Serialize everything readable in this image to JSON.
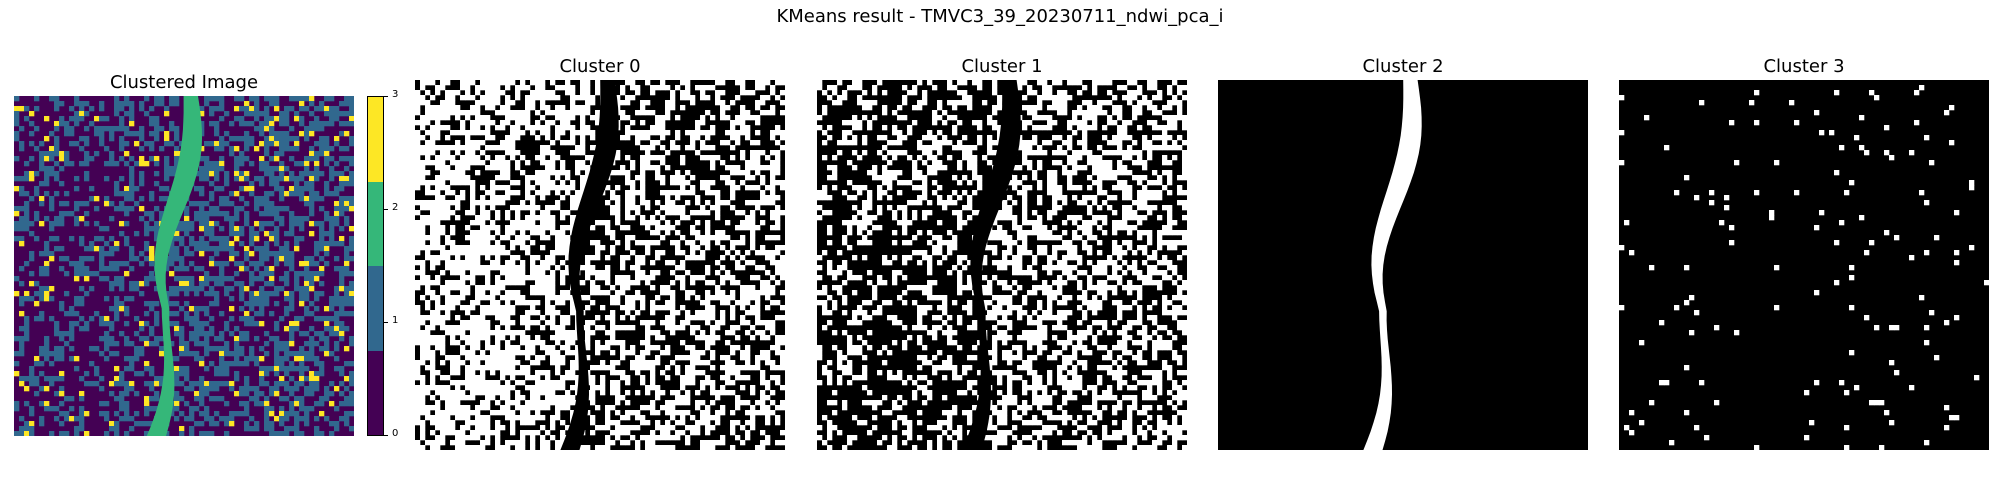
{
  "figure": {
    "suptitle": "KMeans result - TMVC3_39_20230711_ndwi_pca_i"
  },
  "panels": [
    {
      "title": "Clustered Image"
    },
    {
      "title": "Cluster 0"
    },
    {
      "title": "Cluster 1"
    },
    {
      "title": "Cluster 2"
    },
    {
      "title": "Cluster 3"
    }
  ],
  "colorbar": {
    "ticks": [
      "0",
      "1",
      "2",
      "3"
    ],
    "colors": [
      "#440154",
      "#31688e",
      "#35b779",
      "#fde725"
    ]
  },
  "colors": {
    "mask_on": "#ffffff",
    "mask_off": "#000000",
    "river": "#35b779"
  }
}
